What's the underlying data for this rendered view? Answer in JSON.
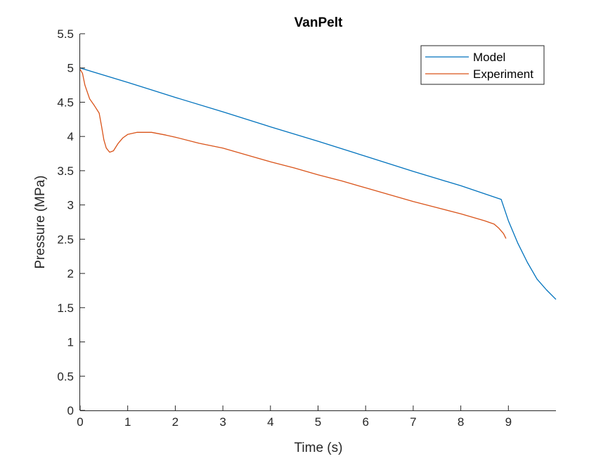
{
  "chart_data": {
    "type": "line",
    "title": "VanPelt",
    "xlabel": "Time (s)",
    "ylabel": "Pressure (MPa)",
    "xlim": [
      0,
      10
    ],
    "ylim": [
      0,
      5.5
    ],
    "xticks": [
      0,
      1,
      2,
      3,
      4,
      5,
      6,
      7,
      8,
      9
    ],
    "xtick_labels": [
      "0",
      "1",
      "2",
      "3",
      "4",
      "5",
      "6",
      "7",
      "8",
      "9"
    ],
    "yticks": [
      0,
      0.5,
      1,
      1.5,
      2,
      2.5,
      3,
      3.5,
      4,
      4.5,
      5,
      5.5
    ],
    "ytick_labels": [
      "0",
      "0.5",
      "1",
      "1.5",
      "2",
      "2.5",
      "3",
      "3.5",
      "4",
      "4.5",
      "5",
      "5.5"
    ],
    "grid": false,
    "legend_position": "top-right",
    "series": [
      {
        "name": "Model",
        "color": "#0072BD",
        "x": [
          0,
          1,
          2,
          3,
          4,
          5,
          6,
          7,
          8,
          8.85,
          9.0,
          9.2,
          9.4,
          9.6,
          9.8,
          10.0
        ],
        "y": [
          5.0,
          4.79,
          4.57,
          4.36,
          4.14,
          3.93,
          3.71,
          3.49,
          3.28,
          3.08,
          2.77,
          2.44,
          2.16,
          1.92,
          1.76,
          1.62
        ]
      },
      {
        "name": "Experiment",
        "color": "#D95319",
        "x": [
          0,
          0.05,
          0.1,
          0.2,
          0.3,
          0.4,
          0.45,
          0.5,
          0.55,
          0.62,
          0.7,
          0.8,
          0.9,
          1.0,
          1.2,
          1.5,
          1.8,
          2.0,
          2.5,
          3.0,
          3.5,
          4.0,
          4.5,
          5.0,
          5.5,
          6.0,
          6.5,
          7.0,
          7.5,
          8.0,
          8.5,
          8.7,
          8.8,
          8.9,
          8.95
        ],
        "y": [
          4.98,
          4.92,
          4.75,
          4.55,
          4.45,
          4.34,
          4.15,
          3.95,
          3.83,
          3.77,
          3.79,
          3.9,
          3.98,
          4.03,
          4.06,
          4.06,
          4.02,
          3.99,
          3.9,
          3.83,
          3.73,
          3.63,
          3.54,
          3.44,
          3.35,
          3.25,
          3.15,
          3.05,
          2.96,
          2.87,
          2.77,
          2.72,
          2.66,
          2.58,
          2.51
        ]
      }
    ]
  }
}
